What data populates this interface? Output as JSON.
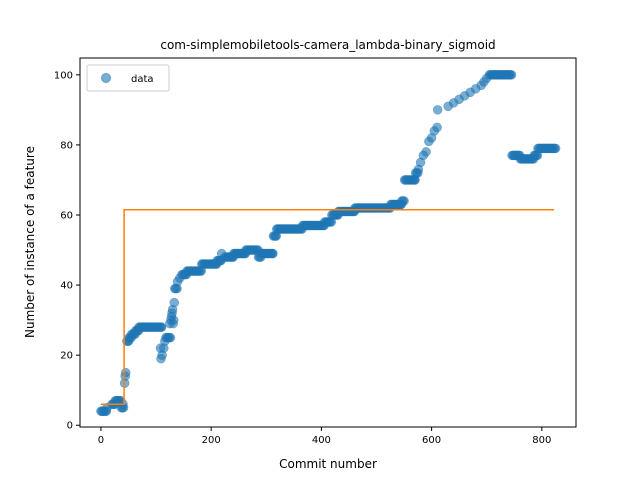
{
  "chart_data": {
    "type": "scatter",
    "title": "com-simplemobiletools-camera_lambda-binary_sigmoid",
    "xlabel": "Commit number",
    "ylabel": "Number of instance of a feature",
    "xlim": [
      -38,
      862
    ],
    "ylim": [
      -0.5,
      104.8
    ],
    "xticks": [
      0,
      200,
      400,
      600,
      800
    ],
    "yticks": [
      0,
      20,
      40,
      60,
      80,
      100
    ],
    "legend": {
      "placement": "top-left",
      "entries": [
        "data"
      ]
    },
    "colors": {
      "data": "#1f77b4",
      "fit": "#ff7f0e"
    },
    "series": [
      {
        "name": "data",
        "type": "scatter",
        "segments": [
          [
            0,
            4
          ],
          [
            10,
            4
          ],
          [
            11,
            5
          ],
          [
            20,
            6
          ],
          [
            25,
            6
          ],
          [
            26,
            7
          ],
          [
            36,
            7
          ],
          [
            37,
            5
          ],
          [
            39,
            5
          ],
          [
            40,
            6
          ],
          [
            41,
            5
          ],
          [
            43,
            12
          ],
          [
            44,
            14
          ],
          [
            45,
            15
          ],
          [
            47,
            24
          ],
          [
            50,
            24
          ],
          [
            51,
            25
          ],
          [
            55,
            25
          ],
          [
            56,
            26
          ],
          [
            62,
            26
          ],
          [
            63,
            27
          ],
          [
            68,
            27
          ],
          [
            69,
            28
          ],
          [
            110,
            28
          ],
          [
            108,
            22
          ],
          [
            109,
            19
          ],
          [
            111,
            20
          ],
          [
            114,
            22
          ],
          [
            116,
            24
          ],
          [
            118,
            25
          ],
          [
            126,
            25
          ],
          [
            125,
            29
          ],
          [
            127,
            30
          ],
          [
            128,
            31
          ],
          [
            129,
            32
          ],
          [
            130,
            33
          ],
          [
            131,
            29
          ],
          [
            132,
            30
          ],
          [
            133,
            35
          ],
          [
            134,
            39
          ],
          [
            138,
            39
          ],
          [
            139,
            41
          ],
          [
            143,
            42
          ],
          [
            147,
            43
          ],
          [
            155,
            43
          ],
          [
            156,
            44
          ],
          [
            182,
            44
          ],
          [
            183,
            46
          ],
          [
            210,
            46
          ],
          [
            211,
            47
          ],
          [
            218,
            47
          ],
          [
            219,
            49
          ],
          [
            225,
            48
          ],
          [
            240,
            48
          ],
          [
            241,
            49
          ],
          [
            262,
            49
          ],
          [
            263,
            50
          ],
          [
            285,
            50
          ],
          [
            286,
            48
          ],
          [
            290,
            48
          ],
          [
            291,
            49
          ],
          [
            312,
            49
          ],
          [
            313,
            54
          ],
          [
            318,
            54
          ],
          [
            319,
            56
          ],
          [
            365,
            56
          ],
          [
            366,
            57
          ],
          [
            405,
            57
          ],
          [
            406,
            58
          ],
          [
            418,
            58
          ],
          [
            419,
            60
          ],
          [
            430,
            60
          ],
          [
            431,
            61
          ],
          [
            460,
            61
          ],
          [
            461,
            62
          ],
          [
            525,
            62
          ],
          [
            526,
            63
          ],
          [
            545,
            63
          ],
          [
            546,
            64
          ],
          [
            550,
            64
          ],
          [
            551,
            70
          ],
          [
            570,
            70
          ],
          [
            571,
            72
          ],
          [
            575,
            72
          ],
          [
            576,
            73
          ],
          [
            580,
            75
          ],
          [
            585,
            77
          ],
          [
            590,
            78
          ],
          [
            595,
            81
          ],
          [
            600,
            82
          ],
          [
            605,
            84
          ],
          [
            610,
            85
          ],
          [
            611,
            90
          ],
          [
            630,
            91
          ],
          [
            640,
            92
          ],
          [
            650,
            93
          ],
          [
            660,
            94
          ],
          [
            670,
            95
          ],
          [
            680,
            96
          ],
          [
            690,
            97
          ],
          [
            695,
            98
          ],
          [
            700,
            99
          ],
          [
            705,
            100
          ],
          [
            745,
            100
          ],
          [
            746,
            77
          ],
          [
            760,
            77
          ],
          [
            761,
            76
          ],
          [
            785,
            76
          ],
          [
            786,
            77
          ],
          [
            792,
            77
          ],
          [
            793,
            79
          ],
          [
            825,
            79
          ]
        ]
      },
      {
        "name": "",
        "type": "step",
        "points": [
          [
            0,
            6
          ],
          [
            42,
            6
          ],
          [
            42,
            61.5
          ],
          [
            822,
            61.5
          ]
        ]
      }
    ]
  }
}
